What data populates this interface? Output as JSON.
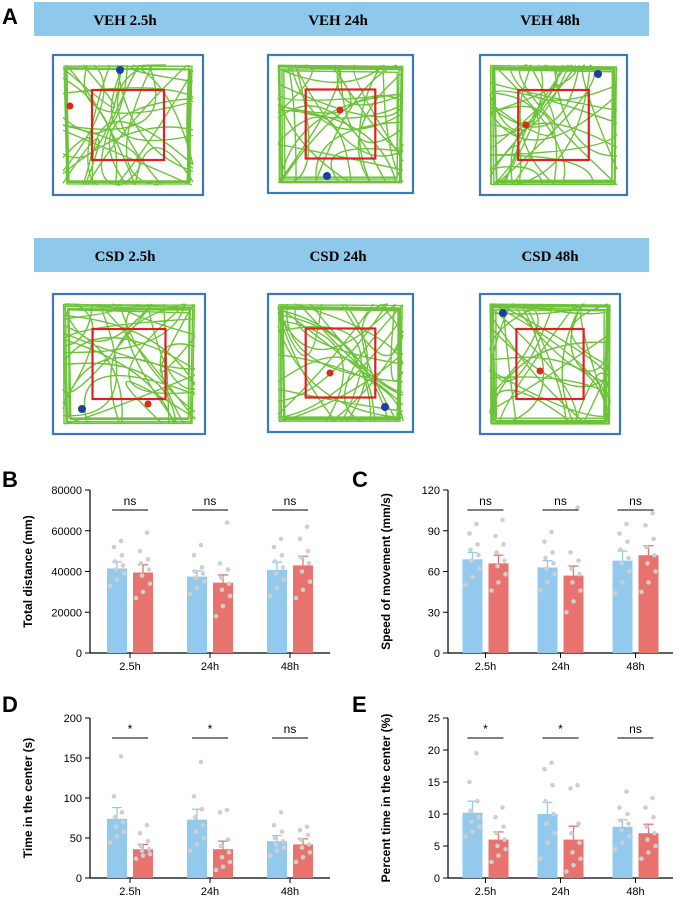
{
  "panel_labels": [
    "A",
    "B",
    "C",
    "D",
    "E"
  ],
  "banners": {
    "veh": [
      "VEH 2.5h",
      "VEH 24h",
      "VEH 48h"
    ],
    "csd": [
      "CSD 2.5h",
      "CSD 24h",
      "CSD 48h"
    ]
  },
  "colors": {
    "banner": "#8ec9ec",
    "frame": "#3a78c0",
    "track": "#6cc33a",
    "zone": "#e02020",
    "veh_bar": "#93c9ec",
    "csd_bar": "#e8726d",
    "dots": "#cfcfcf",
    "start_dot": "#1f3fa0",
    "end_dot": "#d92a1a"
  },
  "chart_data": [
    {
      "panel": "B",
      "type": "bar",
      "categories": [
        "2.5h",
        "24h",
        "48h"
      ],
      "ylabel": "Total distance (mm)",
      "ylim": [
        0,
        80000
      ],
      "yticks": [
        "0",
        "20000",
        "40000",
        "60000",
        "80000"
      ],
      "series": [
        {
          "name": "VEH",
          "values": [
            41500,
            37500,
            40800
          ],
          "sem": [
            3200,
            2800,
            3800
          ],
          "points": [
            [
              33000,
              36000,
              39000,
              41000,
              43000,
              45000,
              48000,
              52000,
              55000
            ],
            [
              29000,
              32000,
              35000,
              37000,
              39000,
              40000,
              42000,
              48000,
              53000
            ],
            [
              28000,
              32000,
              36000,
              39000,
              42000,
              45000,
              48000,
              52000,
              56000
            ]
          ]
        },
        {
          "name": "CSD",
          "values": [
            39500,
            34500,
            43000
          ],
          "sem": [
            3800,
            3800,
            4500
          ],
          "points": [
            [
              27000,
              30000,
              34000,
              38000,
              41000,
              44000,
              46000,
              50000,
              59000
            ],
            [
              18000,
              23000,
              28000,
              31000,
              34000,
              37000,
              41000,
              44000,
              64000
            ],
            [
              27000,
              31000,
              35000,
              40000,
              44000,
              47000,
              50000,
              56000,
              62000
            ]
          ]
        }
      ],
      "significance": [
        "ns",
        "ns",
        "ns"
      ]
    },
    {
      "panel": "C",
      "type": "bar",
      "categories": [
        "2.5h",
        "24h",
        "48h"
      ],
      "ylabel": "Speed of movement (mm/s)",
      "ylim": [
        0,
        120
      ],
      "yticks": [
        "0",
        "30",
        "60",
        "90",
        "120"
      ],
      "series": [
        {
          "name": "VEH",
          "values": [
            69,
            63,
            68
          ],
          "sem": [
            5,
            5,
            7
          ],
          "points": [
            [
              50,
              56,
              62,
              68,
              72,
              76,
              80,
              88,
              95
            ],
            [
              46,
              52,
              58,
              62,
              66,
              70,
              74,
              82,
              89
            ],
            [
              44,
              52,
              60,
              66,
              70,
              76,
              82,
              88,
              95
            ]
          ]
        },
        {
          "name": "CSD",
          "values": [
            66,
            57,
            72
          ],
          "sem": [
            6,
            7,
            7
          ],
          "points": [
            [
              46,
              52,
              58,
              64,
              68,
              74,
              80,
              86,
              98
            ],
            [
              30,
              38,
              46,
              52,
              58,
              62,
              68,
              74,
              107
            ],
            [
              45,
              52,
              60,
              66,
              72,
              78,
              84,
              94,
              103
            ]
          ]
        }
      ],
      "significance": [
        "ns",
        "ns",
        "ns"
      ]
    },
    {
      "panel": "D",
      "type": "bar",
      "categories": [
        "2.5h",
        "24h",
        "48h"
      ],
      "ylabel": "Time in the center (s)",
      "ylim": [
        0,
        200
      ],
      "yticks": [
        "0",
        "50",
        "100",
        "150",
        "200"
      ],
      "series": [
        {
          "name": "VEH",
          "values": [
            74,
            73,
            46
          ],
          "sem": [
            14,
            13,
            7
          ],
          "points": [
            [
              44,
              52,
              58,
              64,
              70,
              76,
              82,
              102,
              152
            ],
            [
              34,
              42,
              50,
              58,
              66,
              76,
              86,
              102,
              145
            ],
            [
              28,
              34,
              38,
              42,
              46,
              50,
              58,
              66,
              82
            ]
          ]
        },
        {
          "name": "CSD",
          "values": [
            36,
            36,
            42
          ],
          "sem": [
            6,
            10,
            7
          ],
          "points": [
            [
              24,
              28,
              30,
              34,
              36,
              40,
              46,
              56,
              66
            ],
            [
              10,
              14,
              20,
              26,
              32,
              40,
              48,
              82,
              85
            ],
            [
              20,
              26,
              32,
              38,
              42,
              48,
              54,
              60,
              64
            ]
          ]
        }
      ],
      "significance": [
        "*",
        "*",
        "ns"
      ]
    },
    {
      "panel": "E",
      "type": "bar",
      "categories": [
        "2.5h",
        "24h",
        "48h"
      ],
      "ylabel": "Percent time in the center (%)",
      "ylim": [
        0,
        25
      ],
      "yticks": [
        "0",
        "5",
        "10",
        "15",
        "20",
        "25"
      ],
      "series": [
        {
          "name": "VEH",
          "values": [
            10.2,
            10.0,
            8.0
          ],
          "sem": [
            1.8,
            1.8,
            1.1
          ],
          "points": [
            [
              6.5,
              7.2,
              8.0,
              8.8,
              9.5,
              10.5,
              12.0,
              15.0,
              19.5
            ],
            [
              3.0,
              5.5,
              7.0,
              8.5,
              10.0,
              12.0,
              14.5,
              17.0,
              18.0
            ],
            [
              4.5,
              5.5,
              6.5,
              7.5,
              8.5,
              9.0,
              10.0,
              11.0,
              13.5
            ]
          ]
        },
        {
          "name": "CSD",
          "values": [
            6.0,
            6.0,
            7.0
          ],
          "sem": [
            1.2,
            2.1,
            1.4
          ],
          "points": [
            [
              2.5,
              3.5,
              4.5,
              5.0,
              6.0,
              7.0,
              8.0,
              9.5,
              11.0
            ],
            [
              1.0,
              2.0,
              3.0,
              4.0,
              5.5,
              7.0,
              8.5,
              14.0,
              14.5
            ],
            [
              3.0,
              4.0,
              5.0,
              6.0,
              7.0,
              8.0,
              9.5,
              11.0,
              12.5
            ]
          ]
        }
      ],
      "significance": [
        "*",
        "*",
        "ns"
      ]
    }
  ]
}
